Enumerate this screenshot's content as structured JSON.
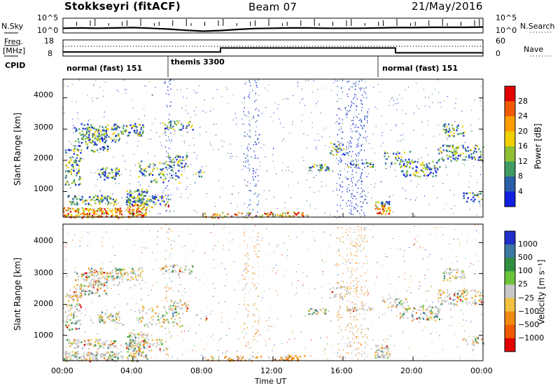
{
  "header": {
    "station": "Stokkseyri (fitACF)",
    "beam": "Beam 07",
    "date": "21/May/2016"
  },
  "top_panels": {
    "nsky_label": "N.Sky",
    "nsearch_label": "N.Search",
    "nsky_ticks": [
      "10^5",
      "10^0"
    ],
    "nsearch_ticks": [
      "10^5",
      "10^0"
    ],
    "freq_label_line1": "Freq.",
    "freq_label_line2": "[MHz]",
    "freq_ticks": [
      "18",
      "8"
    ],
    "nave_label": "Nave",
    "nave_ticks": [
      "60",
      "0"
    ],
    "cpid_label": "CPID",
    "cpid_segments": [
      {
        "label": "normal (fast) 151",
        "start_hour": 0,
        "end_hour": 6
      },
      {
        "label": "themis 3300",
        "start_hour": 6,
        "end_hour": 18
      },
      {
        "label": "normal (fast) 151",
        "start_hour": 18,
        "end_hour": 24
      }
    ]
  },
  "axes": {
    "y_label": "Slant Range [km]",
    "x_label": "Time UT",
    "x_ticks": [
      "00:00",
      "04:00",
      "08:00",
      "12:00",
      "16:00",
      "20:00",
      "00:00"
    ],
    "y_ticks": [
      "1000",
      "2000",
      "3000",
      "4000"
    ]
  },
  "colorbars": {
    "power": {
      "label": "Power [dB]",
      "ticks": [
        "28",
        "24",
        "20",
        "16",
        "12",
        "8",
        "4"
      ],
      "colors": [
        "#e00000",
        "#f25a00",
        "#ff9d00",
        "#f0d000",
        "#8fbf35",
        "#3f9b63",
        "#2a5fa8",
        "#1020e0"
      ]
    },
    "velocity": {
      "label": "Velocity [m s⁻¹]",
      "ticks": [
        "1000",
        "500",
        "100",
        "25",
        "−25",
        "−100",
        "−500",
        "−1000"
      ],
      "colors": [
        "#2030c8",
        "#3c78a0",
        "#2f8f3f",
        "#6cc43a",
        "#c8c8c8",
        "#f0c040",
        "#f08a10",
        "#f05a00",
        "#e00000"
      ]
    }
  },
  "chart_data": [
    {
      "type": "line",
      "title": "Stokkseyri (fitACF)",
      "series": [
        {
          "name": "N.Sky"
        },
        {
          "name": "N.Search"
        }
      ],
      "x": [
        0,
        1,
        2,
        3,
        4,
        5,
        6,
        7,
        8,
        9,
        10,
        11,
        12,
        13,
        14,
        15,
        16,
        17,
        18,
        19,
        20,
        21,
        22,
        23,
        24
      ],
      "nsky_log10": [
        1.6,
        1.7,
        1.6,
        1.7,
        1.8,
        1.6,
        1.3,
        0.9,
        0.6,
        0.8,
        1.2,
        1.5,
        1.6,
        1.7,
        1.7,
        1.6,
        1.6,
        1.6,
        1.7,
        1.8,
        1.8,
        1.9,
        1.9,
        1.9,
        2.0
      ],
      "ylim": [
        0,
        5
      ],
      "scale": "log"
    },
    {
      "type": "line",
      "series": [
        {
          "name": "Freq."
        },
        {
          "name": "Nave"
        }
      ],
      "x": [
        0,
        9,
        9,
        19,
        19,
        24
      ],
      "freq_mhz": [
        10.5,
        10.5,
        13.0,
        13.0,
        10.0,
        10.0
      ],
      "ylim": [
        8,
        18
      ]
    },
    {
      "type": "heatmap",
      "xlabel": "Time UT",
      "ylabel": "Slant Range [km]",
      "xlim": [
        0,
        24
      ],
      "ylim": [
        180,
        4600
      ],
      "colorbar_label": "Power [dB]",
      "zlim": [
        0,
        30
      ]
    },
    {
      "type": "heatmap",
      "xlabel": "Time UT",
      "ylabel": "Slant Range [km]",
      "xlim": [
        0,
        24
      ],
      "ylim": [
        180,
        4600
      ],
      "colorbar_label": "Velocity [m s⁻¹]",
      "zlim": [
        -1000,
        1000
      ]
    }
  ]
}
